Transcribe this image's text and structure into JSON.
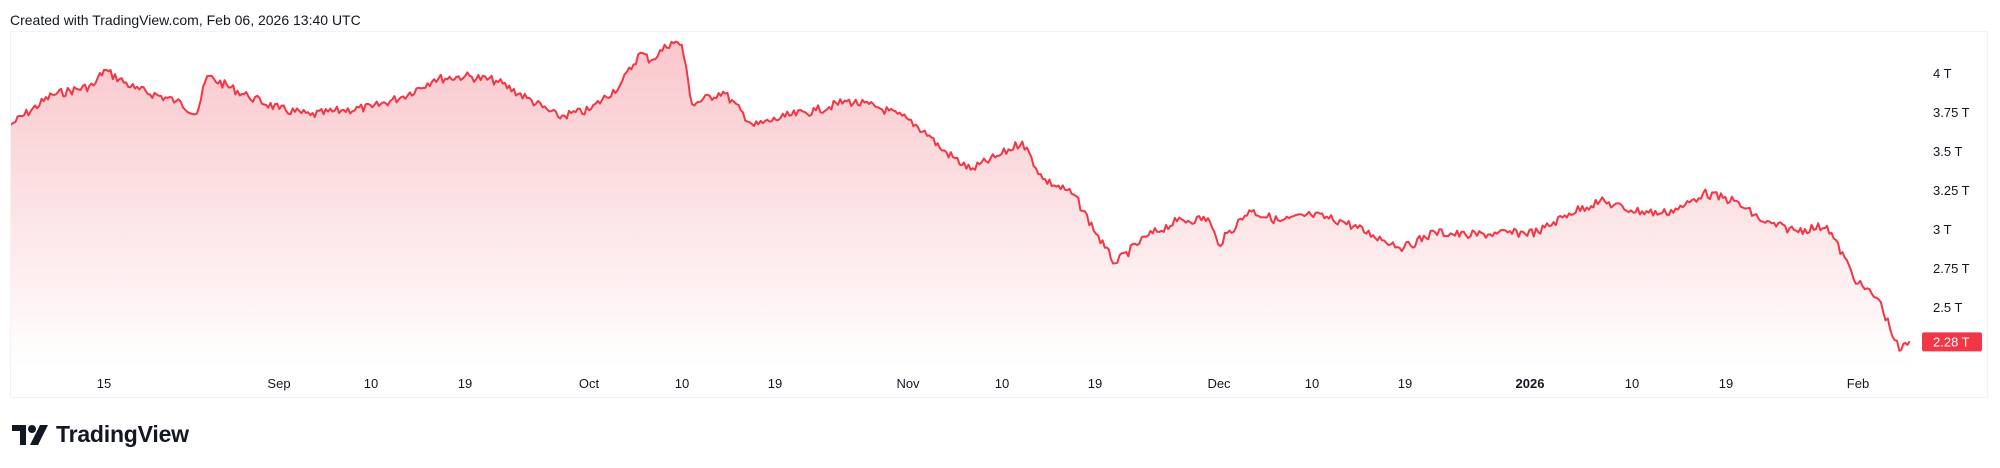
{
  "caption": "Created with TradingView.com, Feb 06, 2026 13:40 UTC",
  "branding": {
    "logo_text": "TradingView",
    "logo_icon": "tradingview-logo-icon"
  },
  "colors": {
    "line": "#f23645",
    "fill_top": "#f9c4c9",
    "fill_bottom": "#ffffff",
    "price_tag_bg": "#f23645",
    "price_tag_text": "#ffffff",
    "axis_text": "#131722",
    "border": "#f0f3fa"
  },
  "price_axis": {
    "ticks": [
      "4 T",
      "3.75 T",
      "3.5 T",
      "3.25 T",
      "3 T",
      "2.75 T",
      "2.5 T"
    ],
    "current_price_label": "2.28 T"
  },
  "time_axis": {
    "ticks": [
      {
        "label": "15",
        "bold": false
      },
      {
        "label": "Sep",
        "bold": false
      },
      {
        "label": "10",
        "bold": false
      },
      {
        "label": "19",
        "bold": false
      },
      {
        "label": "Oct",
        "bold": false
      },
      {
        "label": "10",
        "bold": false
      },
      {
        "label": "19",
        "bold": false
      },
      {
        "label": "Nov",
        "bold": false
      },
      {
        "label": "10",
        "bold": false
      },
      {
        "label": "19",
        "bold": false
      },
      {
        "label": "Dec",
        "bold": false
      },
      {
        "label": "10",
        "bold": false
      },
      {
        "label": "19",
        "bold": false
      },
      {
        "label": "2026",
        "bold": true
      },
      {
        "label": "10",
        "bold": false
      },
      {
        "label": "19",
        "bold": false
      },
      {
        "label": "Feb",
        "bold": false
      }
    ]
  },
  "chart_data": {
    "type": "area",
    "title": "",
    "xlabel": "",
    "ylabel": "",
    "units": "T (trillions)",
    "ylim": [
      2.18,
      4.27
    ],
    "grid": false,
    "legend": "none",
    "last_value": 2.28,
    "x": [
      "Aug 06",
      "Aug 10",
      "Aug 14",
      "Aug 15",
      "Aug 18",
      "Aug 22",
      "Aug 24",
      "Aug 25",
      "Aug 29",
      "Sep 01",
      "Sep 04",
      "Sep 07",
      "Sep 10",
      "Sep 13",
      "Sep 16",
      "Sep 19",
      "Sep 22",
      "Sep 25",
      "Sep 28",
      "Oct 01",
      "Oct 04",
      "Oct 06",
      "Oct 07",
      "Oct 09",
      "Oct 10",
      "Oct 11",
      "Oct 14",
      "Oct 17",
      "Oct 20",
      "Oct 23",
      "Oct 26",
      "Oct 29",
      "Nov 01",
      "Nov 03",
      "Nov 04",
      "Nov 07",
      "Nov 10",
      "Nov 12",
      "Nov 14",
      "Nov 17",
      "Nov 20",
      "Nov 21",
      "Nov 24",
      "Nov 27",
      "Nov 30",
      "Dec 01",
      "Dec 04",
      "Dec 07",
      "Dec 10",
      "Dec 13",
      "Dec 16",
      "Dec 19",
      "Dec 22",
      "Dec 25",
      "Dec 28",
      "Jan 01",
      "Jan 04",
      "Jan 07",
      "Jan 10",
      "Jan 13",
      "Jan 15",
      "Jan 17",
      "Jan 20",
      "Jan 23",
      "Jan 26",
      "Jan 29",
      "Feb 01",
      "Feb 03",
      "Feb 05",
      "Feb 06"
    ],
    "values": [
      3.67,
      3.86,
      3.92,
      4.02,
      3.9,
      3.82,
      3.74,
      3.98,
      3.85,
      3.77,
      3.73,
      3.76,
      3.78,
      3.85,
      3.96,
      3.98,
      3.95,
      3.84,
      3.72,
      3.76,
      3.92,
      4.13,
      4.08,
      4.2,
      4.18,
      3.8,
      3.88,
      3.66,
      3.72,
      3.76,
      3.82,
      3.78,
      3.7,
      3.6,
      3.52,
      3.38,
      3.48,
      3.56,
      3.32,
      3.22,
      2.88,
      2.78,
      2.95,
      3.05,
      3.07,
      2.9,
      3.12,
      3.05,
      3.09,
      3.05,
      2.96,
      2.88,
      2.98,
      2.96,
      2.97,
      2.98,
      3.1,
      3.18,
      3.12,
      3.1,
      3.14,
      3.23,
      3.18,
      3.04,
      2.99,
      3.02,
      2.65,
      2.55,
      2.22,
      2.28
    ]
  }
}
